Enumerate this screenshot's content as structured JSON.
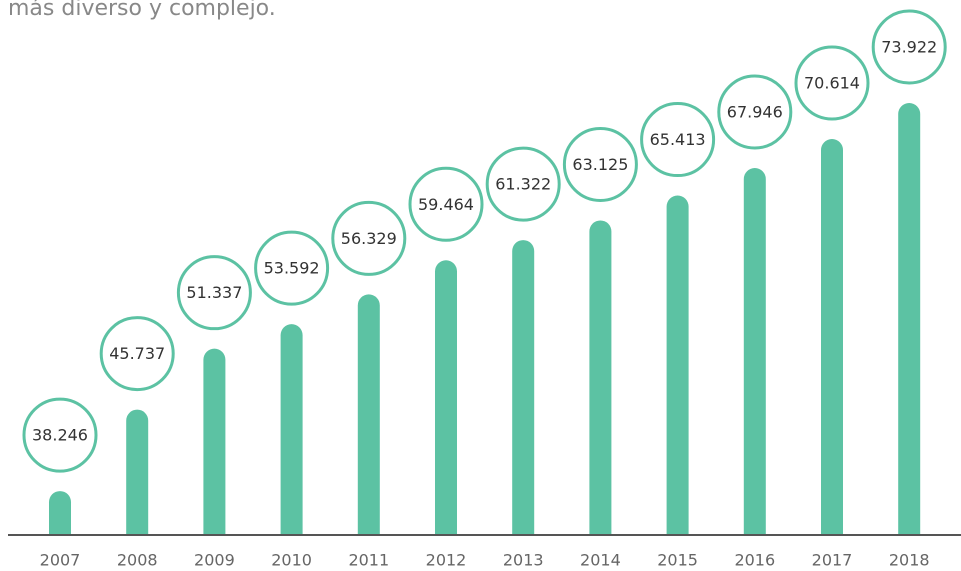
{
  "chart_data": {
    "type": "bar",
    "title": "más diverso y complejo.",
    "categories": [
      "2007",
      "2008",
      "2009",
      "2010",
      "2011",
      "2012",
      "2013",
      "2014",
      "2015",
      "2016",
      "2017",
      "2018"
    ],
    "values": [
      38246,
      45737,
      51337,
      53592,
      56329,
      59464,
      61322,
      63125,
      65413,
      67946,
      70614,
      73922
    ],
    "value_labels": [
      "38.246",
      "45.737",
      "51.337",
      "53.592",
      "56.329",
      "59.464",
      "61.322",
      "63.125",
      "65.413",
      "67.946",
      "70.614",
      "73.922"
    ],
    "color": "#5cc2a3",
    "ylim": [
      34300,
      76000
    ]
  }
}
